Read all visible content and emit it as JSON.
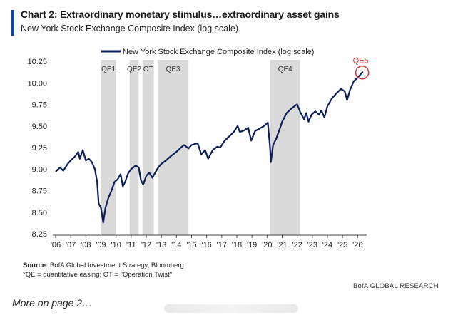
{
  "header": {
    "title": "Chart 2: Extraordinary monetary stimulus…extraordinary asset gains",
    "subtitle": "New York Stock Exchange Composite Index (log scale)"
  },
  "chart_data": {
    "type": "line",
    "legend": {
      "label": "New York Stock Exchange Composite Index (log scale)",
      "placement": "top-center"
    },
    "x_range": [
      2006,
      2026.6
    ],
    "ylim": [
      8.25,
      10.25
    ],
    "y_ticks": [
      "8.25",
      "8.50",
      "8.75",
      "9.00",
      "9.25",
      "9.50",
      "9.75",
      "10.00",
      "10.25"
    ],
    "y_tick_values": [
      8.25,
      8.5,
      8.75,
      9.0,
      9.25,
      9.5,
      9.75,
      10.0,
      10.25
    ],
    "x_ticks": [
      "'06",
      "'07",
      "'08",
      "'09",
      "'10",
      "'11",
      "'12",
      "'13",
      "'14",
      "'15",
      "'16",
      "'17",
      "'18",
      "'19",
      "'20",
      "'21",
      "'22",
      "'23",
      "'24",
      "'25",
      "'26"
    ],
    "x_tick_values": [
      2006,
      2007,
      2008,
      2009,
      2010,
      2011,
      2012,
      2013,
      2014,
      2015,
      2016,
      2017,
      2018,
      2019,
      2020,
      2021,
      2022,
      2023,
      2024,
      2025,
      2026
    ],
    "shaded_periods": [
      {
        "label": "QE1",
        "start": 2009.0,
        "end": 2010.0
      },
      {
        "label": "QE2",
        "start": 2010.9,
        "end": 2011.5
      },
      {
        "label": "OT",
        "start": 2011.75,
        "end": 2012.5
      },
      {
        "label": "QE3",
        "start": 2012.75,
        "end": 2014.8
      },
      {
        "label": "QE4",
        "start": 2020.2,
        "end": 2022.2
      }
    ],
    "annotation": {
      "label": "QE5",
      "x": 2026.3,
      "y": 10.12
    },
    "series": [
      {
        "color": "#0b1f5c",
        "points": [
          [
            2006.0,
            8.97
          ],
          [
            2006.3,
            9.02
          ],
          [
            2006.5,
            8.98
          ],
          [
            2006.8,
            9.06
          ],
          [
            2007.0,
            9.1
          ],
          [
            2007.3,
            9.15
          ],
          [
            2007.5,
            9.2
          ],
          [
            2007.6,
            9.12
          ],
          [
            2007.8,
            9.22
          ],
          [
            2008.0,
            9.1
          ],
          [
            2008.2,
            9.12
          ],
          [
            2008.4,
            9.08
          ],
          [
            2008.6,
            9.0
          ],
          [
            2008.75,
            8.85
          ],
          [
            2008.85,
            8.6
          ],
          [
            2009.0,
            8.55
          ],
          [
            2009.15,
            8.38
          ],
          [
            2009.3,
            8.55
          ],
          [
            2009.5,
            8.67
          ],
          [
            2009.7,
            8.75
          ],
          [
            2009.9,
            8.85
          ],
          [
            2010.1,
            8.88
          ],
          [
            2010.3,
            8.94
          ],
          [
            2010.45,
            8.8
          ],
          [
            2010.6,
            8.85
          ],
          [
            2010.8,
            8.95
          ],
          [
            2011.0,
            9.0
          ],
          [
            2011.3,
            9.04
          ],
          [
            2011.5,
            9.02
          ],
          [
            2011.65,
            8.87
          ],
          [
            2011.8,
            8.82
          ],
          [
            2012.0,
            8.92
          ],
          [
            2012.2,
            8.96
          ],
          [
            2012.4,
            8.9
          ],
          [
            2012.6,
            8.96
          ],
          [
            2012.8,
            9.02
          ],
          [
            2013.0,
            9.06
          ],
          [
            2013.3,
            9.1
          ],
          [
            2013.5,
            9.13
          ],
          [
            2013.7,
            9.16
          ],
          [
            2014.0,
            9.2
          ],
          [
            2014.3,
            9.25
          ],
          [
            2014.5,
            9.28
          ],
          [
            2014.8,
            9.24
          ],
          [
            2015.0,
            9.28
          ],
          [
            2015.4,
            9.3
          ],
          [
            2015.65,
            9.17
          ],
          [
            2015.9,
            9.22
          ],
          [
            2016.1,
            9.12
          ],
          [
            2016.4,
            9.22
          ],
          [
            2016.7,
            9.26
          ],
          [
            2016.9,
            9.25
          ],
          [
            2017.2,
            9.33
          ],
          [
            2017.5,
            9.38
          ],
          [
            2017.8,
            9.43
          ],
          [
            2018.05,
            9.5
          ],
          [
            2018.2,
            9.43
          ],
          [
            2018.5,
            9.45
          ],
          [
            2018.75,
            9.48
          ],
          [
            2018.95,
            9.33
          ],
          [
            2019.2,
            9.44
          ],
          [
            2019.5,
            9.47
          ],
          [
            2019.8,
            9.5
          ],
          [
            2020.05,
            9.54
          ],
          [
            2020.2,
            9.25
          ],
          [
            2020.25,
            9.08
          ],
          [
            2020.4,
            9.28
          ],
          [
            2020.6,
            9.35
          ],
          [
            2020.85,
            9.47
          ],
          [
            2021.0,
            9.55
          ],
          [
            2021.3,
            9.65
          ],
          [
            2021.6,
            9.7
          ],
          [
            2021.9,
            9.74
          ],
          [
            2022.0,
            9.75
          ],
          [
            2022.2,
            9.66
          ],
          [
            2022.45,
            9.58
          ],
          [
            2022.6,
            9.65
          ],
          [
            2022.75,
            9.55
          ],
          [
            2022.95,
            9.63
          ],
          [
            2023.2,
            9.67
          ],
          [
            2023.45,
            9.63
          ],
          [
            2023.6,
            9.68
          ],
          [
            2023.8,
            9.6
          ],
          [
            2024.0,
            9.73
          ],
          [
            2024.3,
            9.82
          ],
          [
            2024.6,
            9.88
          ],
          [
            2024.9,
            9.93
          ],
          [
            2025.15,
            9.9
          ],
          [
            2025.3,
            9.8
          ],
          [
            2025.5,
            9.92
          ],
          [
            2025.75,
            10.02
          ],
          [
            2026.0,
            10.06
          ],
          [
            2026.2,
            10.1
          ],
          [
            2026.35,
            10.13
          ]
        ]
      }
    ]
  },
  "footer": {
    "source_label": "Source:",
    "source_text": " BofA Global Investment Strategy, Bloomberg",
    "note": "*QE = quantitative easing; OT = \"Operation Twist\"",
    "credit": "BofA GLOBAL RESEARCH",
    "more": "More on page 2…"
  }
}
